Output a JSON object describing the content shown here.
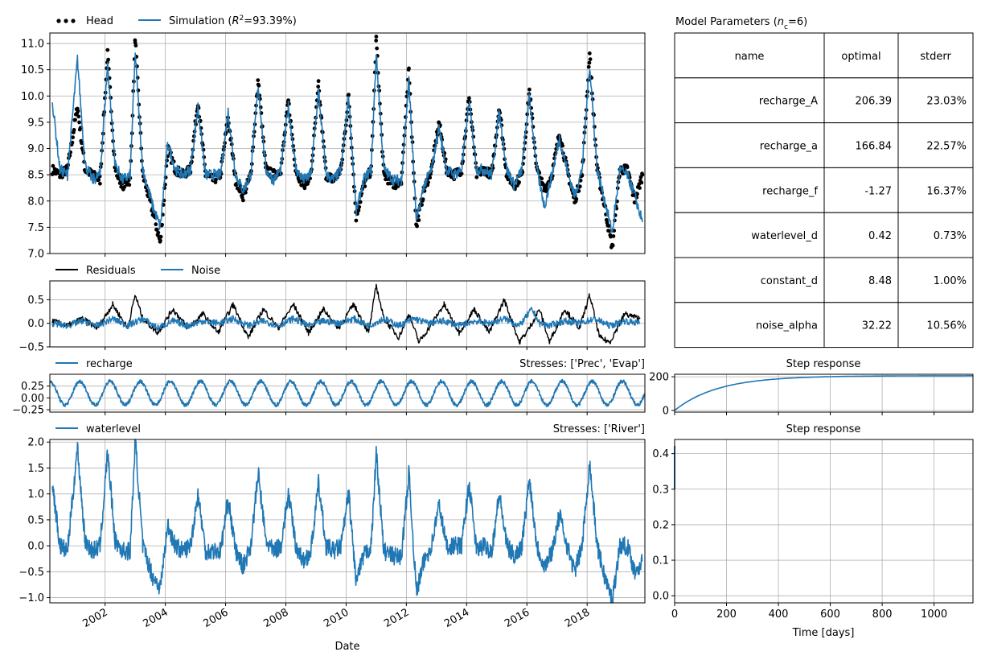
{
  "figure": {
    "x_label": "Date",
    "x_ticks": [
      "2002",
      "2004",
      "2006",
      "2008",
      "2010",
      "2012",
      "2014",
      "2016",
      "2018"
    ],
    "colors": {
      "model": "#1f77b4",
      "observed": "#000000",
      "grid": "#b0b0b0"
    }
  },
  "chart_data": [
    {
      "id": "head-panel",
      "type": "line",
      "legend": [
        {
          "name": "Head",
          "style": "dots",
          "color": "#000000"
        },
        {
          "name": "Simulation (R²=93.39%)",
          "name_prefix": "Simulation (",
          "name_var": "R",
          "name_sup": "2",
          "name_suffix": "=93.39%)",
          "style": "line",
          "color": "#1f77b4"
        }
      ],
      "xlim": [
        "2000-03",
        "2019-12"
      ],
      "ylim": [
        7.0,
        11.2
      ],
      "y_ticks": [
        "7.0",
        "7.5",
        "8.0",
        "8.5",
        "9.0",
        "9.5",
        "10.0",
        "10.5",
        "11.0"
      ],
      "grid": true,
      "series": [
        {
          "name": "Head",
          "dates": [
            "2000-04",
            "2000-07",
            "2000-10",
            "2001-02",
            "2001-05",
            "2001-08",
            "2001-11",
            "2002-02",
            "2002-05",
            "2002-08",
            "2002-11",
            "2003-01",
            "2003-04",
            "2003-08",
            "2003-11",
            "2004-02",
            "2004-05",
            "2004-08",
            "2004-11",
            "2005-02",
            "2005-05",
            "2005-08",
            "2005-11",
            "2006-02",
            "2006-05",
            "2006-08",
            "2006-11",
            "2007-02",
            "2007-05",
            "2007-08",
            "2007-11",
            "2008-02",
            "2008-05",
            "2008-08",
            "2008-11",
            "2009-02",
            "2009-05",
            "2009-08",
            "2009-11",
            "2010-02",
            "2010-05",
            "2010-08",
            "2010-11",
            "2011-01",
            "2011-04",
            "2011-08",
            "2011-11",
            "2012-02",
            "2012-05",
            "2012-08",
            "2012-11",
            "2013-02",
            "2013-05",
            "2013-08",
            "2013-11",
            "2014-02",
            "2014-05",
            "2014-08",
            "2014-11",
            "2015-02",
            "2015-05",
            "2015-08",
            "2015-11",
            "2016-02",
            "2016-05",
            "2016-08",
            "2016-11",
            "2017-02",
            "2017-05",
            "2017-08",
            "2017-11",
            "2018-02",
            "2018-05",
            "2018-08",
            "2018-11",
            "2019-02",
            "2019-05",
            "2019-08",
            "2019-11"
          ],
          "values": [
            8.6,
            8.5,
            8.6,
            9.8,
            8.6,
            8.5,
            8.4,
            10.8,
            8.6,
            8.3,
            8.4,
            11.1,
            8.5,
            7.8,
            7.2,
            9.0,
            8.6,
            8.5,
            8.6,
            9.9,
            8.5,
            8.4,
            8.5,
            9.6,
            8.4,
            8.1,
            8.5,
            10.3,
            8.6,
            8.5,
            8.6,
            9.9,
            8.6,
            8.3,
            8.5,
            10.2,
            8.5,
            8.4,
            8.6,
            10.0,
            7.7,
            8.3,
            8.6,
            11.1,
            8.5,
            8.3,
            8.4,
            10.5,
            7.5,
            8.2,
            8.6,
            9.5,
            8.6,
            8.5,
            8.6,
            10.0,
            8.5,
            8.6,
            8.5,
            9.8,
            8.5,
            8.3,
            8.5,
            10.1,
            8.6,
            8.2,
            8.5,
            9.3,
            8.6,
            8.0,
            8.5,
            10.8,
            8.6,
            7.9,
            7.1,
            8.6,
            8.6,
            8.0,
            8.5
          ]
        },
        {
          "name": "Simulation",
          "dates": [
            "2000-04",
            "2000-07",
            "2000-10",
            "2001-02",
            "2001-05",
            "2001-08",
            "2001-11",
            "2002-02",
            "2002-05",
            "2002-08",
            "2002-11",
            "2003-01",
            "2003-04",
            "2003-08",
            "2003-11",
            "2004-02",
            "2004-05",
            "2004-08",
            "2004-11",
            "2005-02",
            "2005-05",
            "2005-08",
            "2005-11",
            "2006-02",
            "2006-05",
            "2006-08",
            "2006-11",
            "2007-02",
            "2007-05",
            "2007-08",
            "2007-11",
            "2008-02",
            "2008-05",
            "2008-08",
            "2008-11",
            "2009-02",
            "2009-05",
            "2009-08",
            "2009-11",
            "2010-02",
            "2010-05",
            "2010-08",
            "2010-11",
            "2011-01",
            "2011-04",
            "2011-08",
            "2011-11",
            "2012-02",
            "2012-05",
            "2012-08",
            "2012-11",
            "2013-02",
            "2013-05",
            "2013-08",
            "2013-11",
            "2014-02",
            "2014-05",
            "2014-08",
            "2014-11",
            "2015-02",
            "2015-05",
            "2015-08",
            "2015-11",
            "2016-02",
            "2016-05",
            "2016-08",
            "2016-11",
            "2017-02",
            "2017-05",
            "2017-08",
            "2017-11",
            "2018-02",
            "2018-05",
            "2018-08",
            "2018-11",
            "2019-02",
            "2019-05",
            "2019-08",
            "2019-11"
          ],
          "values": [
            9.9,
            8.6,
            8.5,
            10.7,
            8.7,
            8.4,
            8.5,
            10.6,
            8.7,
            8.4,
            8.5,
            10.8,
            8.6,
            7.9,
            7.5,
            9.1,
            8.6,
            8.5,
            8.6,
            9.8,
            8.5,
            8.5,
            8.5,
            9.7,
            8.5,
            8.2,
            8.5,
            10.2,
            8.6,
            8.4,
            8.6,
            9.8,
            8.6,
            8.4,
            8.5,
            10.1,
            8.5,
            8.4,
            8.6,
            10.0,
            7.8,
            8.4,
            8.6,
            10.8,
            8.6,
            8.4,
            8.4,
            10.3,
            7.6,
            8.3,
            8.6,
            9.4,
            8.6,
            8.5,
            8.6,
            9.9,
            8.6,
            8.6,
            8.5,
            9.7,
            8.6,
            8.3,
            8.6,
            10.0,
            8.6,
            7.9,
            8.5,
            9.2,
            8.6,
            8.1,
            8.6,
            10.6,
            8.6,
            8.0,
            7.4,
            8.6,
            8.5,
            8.1,
            7.6
          ]
        }
      ]
    },
    {
      "id": "residuals-panel",
      "type": "line",
      "legend": [
        {
          "name": "Residuals",
          "style": "line",
          "color": "#000000"
        },
        {
          "name": "Noise",
          "style": "line",
          "color": "#1f77b4"
        }
      ],
      "xlim": [
        "2000-03",
        "2019-12"
      ],
      "ylim": [
        -0.5,
        0.9
      ],
      "y_ticks": [
        "−0.5",
        "0.0",
        "0.5"
      ],
      "grid": true,
      "series": [
        {
          "name": "Residuals",
          "dates": [
            "2000-04",
            "2000-10",
            "2001-04",
            "2001-10",
            "2002-04",
            "2002-10",
            "2003-01",
            "2003-04",
            "2003-10",
            "2004-04",
            "2004-10",
            "2005-04",
            "2005-10",
            "2006-04",
            "2006-10",
            "2007-04",
            "2007-10",
            "2008-04",
            "2008-10",
            "2009-04",
            "2009-10",
            "2010-04",
            "2010-10",
            "2011-01",
            "2011-04",
            "2011-10",
            "2012-02",
            "2012-06",
            "2012-10",
            "2013-04",
            "2013-10",
            "2014-04",
            "2014-10",
            "2015-04",
            "2015-10",
            "2016-02",
            "2016-06",
            "2016-10",
            "2017-04",
            "2017-10",
            "2018-02",
            "2018-06",
            "2018-10",
            "2019-04",
            "2019-10"
          ],
          "values": [
            0.05,
            -0.05,
            0.1,
            -0.1,
            0.4,
            -0.1,
            0.6,
            0.1,
            -0.2,
            0.3,
            -0.1,
            0.2,
            -0.2,
            0.4,
            -0.3,
            0.3,
            -0.1,
            0.4,
            -0.2,
            0.3,
            -0.1,
            0.4,
            -0.2,
            0.8,
            0.1,
            -0.3,
            0.2,
            -0.4,
            -0.1,
            0.4,
            -0.2,
            0.3,
            -0.2,
            0.5,
            -0.4,
            -0.1,
            0.3,
            -0.4,
            0.3,
            -0.1,
            0.6,
            -0.3,
            -0.4,
            0.2,
            0.1
          ]
        },
        {
          "name": "Noise",
          "dates": [
            "2000-04",
            "2000-10",
            "2001-04",
            "2001-10",
            "2002-04",
            "2002-10",
            "2003-04",
            "2003-10",
            "2004-04",
            "2004-10",
            "2005-04",
            "2005-10",
            "2006-04",
            "2006-10",
            "2007-04",
            "2007-10",
            "2008-04",
            "2008-10",
            "2009-04",
            "2009-10",
            "2010-04",
            "2010-10",
            "2011-04",
            "2011-10",
            "2012-04",
            "2012-10",
            "2013-04",
            "2013-10",
            "2014-04",
            "2014-10",
            "2015-04",
            "2015-10",
            "2016-03",
            "2016-06",
            "2016-10",
            "2017-04",
            "2017-10",
            "2018-04",
            "2018-10",
            "2019-04",
            "2019-10"
          ],
          "values": [
            0.0,
            -0.05,
            0.05,
            -0.05,
            0.1,
            -0.05,
            0.1,
            -0.1,
            0.05,
            -0.05,
            0.05,
            0.0,
            0.1,
            -0.05,
            0.05,
            -0.05,
            0.1,
            -0.05,
            0.05,
            0.0,
            0.1,
            -0.05,
            0.1,
            -0.05,
            0.1,
            0.0,
            0.05,
            -0.05,
            0.05,
            0.0,
            0.1,
            -0.05,
            0.3,
            0.0,
            -0.05,
            0.05,
            0.0,
            0.1,
            -0.05,
            0.05,
            0.0
          ]
        }
      ]
    },
    {
      "id": "recharge-panel",
      "type": "line",
      "legend": [
        {
          "name": "recharge",
          "style": "line",
          "color": "#1f77b4"
        }
      ],
      "annotation": "Stresses: ['Prec', 'Evap']",
      "xlim": [
        "2000-03",
        "2019-12"
      ],
      "ylim": [
        -0.3,
        0.5
      ],
      "y_ticks": [
        "−0.25",
        "0.00",
        "0.25"
      ],
      "grid": true,
      "series": [
        {
          "name": "recharge",
          "period_years": 1.0,
          "amplitude": 0.25,
          "offset": 0.1,
          "phase_peak_month": 2
        }
      ]
    },
    {
      "id": "waterlevel-panel",
      "type": "line",
      "legend": [
        {
          "name": "waterlevel",
          "style": "line",
          "color": "#1f77b4"
        }
      ],
      "annotation": "Stresses: ['River']",
      "xlim": [
        "2000-03",
        "2019-12"
      ],
      "ylim": [
        -1.1,
        2.05
      ],
      "y_ticks": [
        "−1.0",
        "−0.5",
        "0.0",
        "0.5",
        "1.0",
        "1.5",
        "2.0"
      ],
      "grid": true,
      "series": [
        {
          "name": "waterlevel",
          "dates": [
            "2000-04",
            "2000-07",
            "2000-10",
            "2001-02",
            "2001-05",
            "2001-08",
            "2001-11",
            "2002-02",
            "2002-05",
            "2002-08",
            "2002-11",
            "2003-01",
            "2003-04",
            "2003-08",
            "2003-11",
            "2004-02",
            "2004-05",
            "2004-08",
            "2004-11",
            "2005-02",
            "2005-05",
            "2005-08",
            "2005-11",
            "2006-02",
            "2006-05",
            "2006-08",
            "2006-11",
            "2007-02",
            "2007-05",
            "2007-08",
            "2007-11",
            "2008-02",
            "2008-05",
            "2008-08",
            "2008-11",
            "2009-02",
            "2009-05",
            "2009-08",
            "2009-11",
            "2010-02",
            "2010-05",
            "2010-08",
            "2010-11",
            "2011-01",
            "2011-04",
            "2011-08",
            "2011-11",
            "2012-02",
            "2012-05",
            "2012-08",
            "2012-11",
            "2013-02",
            "2013-05",
            "2013-08",
            "2013-11",
            "2014-02",
            "2014-05",
            "2014-08",
            "2014-11",
            "2015-02",
            "2015-05",
            "2015-08",
            "2015-11",
            "2016-02",
            "2016-05",
            "2016-08",
            "2016-11",
            "2017-02",
            "2017-05",
            "2017-08",
            "2017-11",
            "2018-02",
            "2018-05",
            "2018-08",
            "2018-11",
            "2019-02",
            "2019-05",
            "2019-08",
            "2019-11"
          ],
          "values": [
            1.2,
            0.0,
            -0.1,
            1.9,
            0.1,
            -0.1,
            0.0,
            1.8,
            0.1,
            -0.1,
            -0.1,
            2.05,
            0.0,
            -0.6,
            -0.8,
            0.4,
            0.0,
            -0.1,
            0.0,
            1.0,
            -0.1,
            -0.1,
            -0.1,
            0.9,
            -0.1,
            -0.4,
            0.0,
            1.4,
            0.1,
            -0.1,
            0.0,
            1.0,
            0.0,
            -0.3,
            -0.1,
            1.2,
            0.0,
            -0.1,
            0.0,
            1.0,
            -0.7,
            -0.2,
            0.0,
            1.8,
            -0.1,
            -0.2,
            -0.2,
            1.4,
            -0.9,
            -0.3,
            0.0,
            0.8,
            0.0,
            0.0,
            0.0,
            1.2,
            -0.1,
            0.0,
            -0.1,
            1.0,
            0.0,
            -0.2,
            0.0,
            1.3,
            0.0,
            -0.4,
            -0.1,
            0.6,
            0.0,
            -0.5,
            0.0,
            1.6,
            0.0,
            -0.6,
            -1.05,
            0.0,
            0.0,
            -0.5,
            -0.3
          ]
        }
      ]
    },
    {
      "id": "step-response-recharge",
      "type": "line",
      "title": "Step response",
      "xlim": [
        0,
        1150
      ],
      "ylim": [
        -10,
        215
      ],
      "y_ticks": [
        "0",
        "200"
      ],
      "grid": true,
      "series": [
        {
          "name": "recharge step",
          "A": 206.39,
          "a": 166.84
        }
      ]
    },
    {
      "id": "step-response-waterlevel",
      "type": "line",
      "title": "Step response",
      "xlabel": "Time [days]",
      "xlim": [
        0,
        1150
      ],
      "ylim": [
        -0.02,
        0.44
      ],
      "x_ticks": [
        "0",
        "200",
        "400",
        "600",
        "800",
        "1000"
      ],
      "y_ticks": [
        "0.0",
        "0.1",
        "0.2",
        "0.3",
        "0.4"
      ],
      "grid": true,
      "series": [
        {
          "name": "waterlevel step",
          "d": 0.42
        }
      ]
    },
    {
      "id": "parameter-table",
      "type": "table",
      "title_prefix": "Model Parameters (",
      "title_var": "n",
      "title_sub": "c",
      "title_suffix": "=6)",
      "columns": [
        "name",
        "optimal",
        "stderr"
      ],
      "rows": [
        [
          "recharge_A",
          "206.39",
          "23.03%"
        ],
        [
          "recharge_a",
          "166.84",
          "22.57%"
        ],
        [
          "recharge_f",
          "-1.27",
          "16.37%"
        ],
        [
          "waterlevel_d",
          "0.42",
          "0.73%"
        ],
        [
          "constant_d",
          "8.48",
          "1.00%"
        ],
        [
          "noise_alpha",
          "32.22",
          "10.56%"
        ]
      ]
    }
  ]
}
